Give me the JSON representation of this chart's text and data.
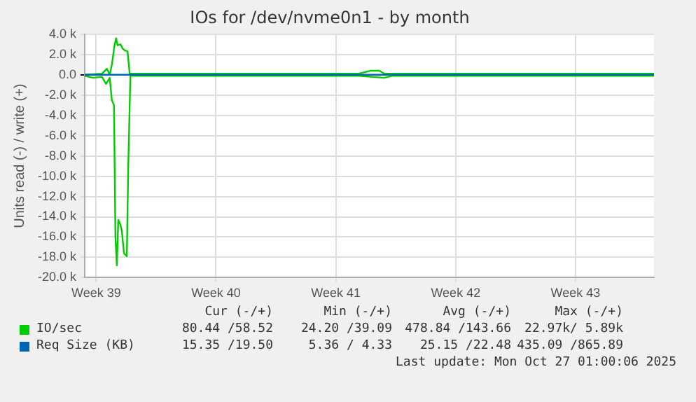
{
  "chart_data": {
    "type": "line",
    "title": "IOs for /dev/nvme0n1 - by month",
    "ylabel": "Units read (-) / write (+)",
    "xlim": [
      "2025-09-23T17:00",
      "2025-10-26T23:00"
    ],
    "xticks": [
      {
        "value": "2025-09-24T09:00",
        "label": "Week 39"
      },
      {
        "value": "2025-10-01T09:00",
        "label": "Week 40"
      },
      {
        "value": "2025-10-08T09:00",
        "label": "Week 41"
      },
      {
        "value": "2025-10-15T09:00",
        "label": "Week 42"
      },
      {
        "value": "2025-10-22T09:00",
        "label": "Week 43"
      }
    ],
    "ylim": [
      -20000,
      4000
    ],
    "yticks": [
      {
        "value": 4000,
        "label": "4.0 k"
      },
      {
        "value": 2000,
        "label": "2.0 k"
      },
      {
        "value": 0,
        "label": "0.0"
      },
      {
        "value": -2000,
        "label": "-2.0 k"
      },
      {
        "value": -4000,
        "label": "-4.0 k"
      },
      {
        "value": -6000,
        "label": "-6.0 k"
      },
      {
        "value": -8000,
        "label": "-8.0 k"
      },
      {
        "value": -10000,
        "label": "-10.0 k"
      },
      {
        "value": -12000,
        "label": "-12.0 k"
      },
      {
        "value": -14000,
        "label": "-14.0 k"
      },
      {
        "value": -16000,
        "label": "-16.0 k"
      },
      {
        "value": -18000,
        "label": "-18.0 k"
      },
      {
        "value": -20000,
        "label": "-20.0 k"
      }
    ],
    "grid": true,
    "legend": "bottom",
    "marker": "none",
    "line_style": "solid",
    "series": [
      {
        "name": "IO/sec",
        "color": "#00cc00",
        "x": [
          "2025-09-23T17:00",
          "2025-09-24T05:00",
          "2025-09-24T17:00",
          "2025-09-24T23:00",
          "2025-09-25T04:00",
          "2025-09-25T07:00",
          "2025-09-25T10:00",
          "2025-09-25T12:00",
          "2025-09-25T14:00",
          "2025-09-25T16:00",
          "2025-09-25T19:00",
          "2025-09-25T21:00",
          "2025-09-26T00:00",
          "2025-09-26T04:00",
          "2025-09-26T06:00",
          "2025-09-26T09:00",
          "2025-09-27T17:00",
          "2025-09-29T17:00",
          "2025-10-01T17:00",
          "2025-10-03T17:00",
          "2025-10-05T17:00",
          "2025-10-07T17:00",
          "2025-10-09T17:00",
          "2025-10-11T05:00",
          "2025-10-11T17:00",
          "2025-10-13T17:00",
          "2025-10-15T17:00",
          "2025-10-17T17:00",
          "2025-10-19T17:00",
          "2025-10-21T17:00",
          "2025-10-23T17:00",
          "2025-10-25T17:00",
          "2025-10-26T23:00"
        ],
        "values": [
          -100,
          -300,
          -200,
          -900,
          -300,
          -2500,
          -3000,
          -16000,
          -18800,
          -14300,
          -14800,
          -15400,
          -17600,
          -17900,
          -9000,
          -100,
          -100,
          -100,
          -100,
          -100,
          -100,
          -100,
          -100,
          -300,
          -100,
          -100,
          -100,
          -100,
          -100,
          -100,
          -100,
          -100,
          -100
        ]
      },
      {
        "color": "#00cc00",
        "x": [
          "2025-09-23T17:00",
          "2025-09-24T17:00",
          "2025-09-25T00:00",
          "2025-09-25T04:00",
          "2025-09-25T07:00",
          "2025-09-25T11:00",
          "2025-09-25T13:00",
          "2025-09-25T15:00",
          "2025-09-25T19:00",
          "2025-09-25T22:00",
          "2025-09-26T01:00",
          "2025-09-26T05:00",
          "2025-09-26T08:00",
          "2025-09-27T17:00",
          "2025-09-29T17:00",
          "2025-10-01T17:00",
          "2025-10-03T17:00",
          "2025-10-05T17:00",
          "2025-10-07T17:00",
          "2025-10-09T17:00",
          "2025-10-10T10:00",
          "2025-10-10T22:00",
          "2025-10-11T05:00",
          "2025-10-11T17:00",
          "2025-10-13T17:00",
          "2025-10-15T17:00",
          "2025-10-17T17:00",
          "2025-10-19T17:00",
          "2025-10-21T17:00",
          "2025-10-23T17:00",
          "2025-10-25T17:00",
          "2025-10-26T23:00"
        ],
        "values": [
          0,
          100,
          600,
          0,
          1000,
          3000,
          3600,
          2900,
          3000,
          2600,
          2400,
          2300,
          100,
          100,
          100,
          100,
          100,
          100,
          100,
          100,
          400,
          400,
          100,
          100,
          100,
          100,
          100,
          100,
          100,
          100,
          100,
          100
        ]
      },
      {
        "name": "Req Size (KB)",
        "color": "#0066b3",
        "x": [
          "2025-09-23T17:00",
          "2025-10-26T23:00"
        ],
        "values": [
          0,
          0
        ]
      }
    ],
    "annotations": [
      "Cur (-/+)",
      "Min (-/+)",
      "Avg (-/+)",
      "Max (-/+)",
      "80.44 /58.52",
      "24.20 /39.09",
      "478.84 /143.66",
      "22.97k/ 5.89k",
      "15.35 /19.50",
      "5.36 / 4.33",
      "25.15 /22.48",
      "435.09 /865.89",
      "Last update: Mon Oct 27 01:00:06 2025"
    ]
  }
}
